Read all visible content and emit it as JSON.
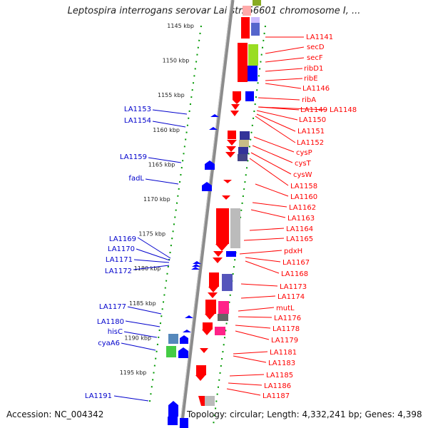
{
  "title": "Leptospira interrogans serovar Lai str. 56601 chromosome I, ...",
  "footer": {
    "accession": "Accession: NC_004342",
    "topology": "Topology: circular; Length: 4,332,241 bp; Genes: 4,398"
  },
  "colors": {
    "red": "#ff0000",
    "blue": "#0000ff",
    "navy": "#333399",
    "khaki": "#c8bd86",
    "lime": "#99dd22",
    "gray": "#bbbbbb",
    "pink": "#ff2288",
    "steel": "#5588bb",
    "green": "#44cc44",
    "tick": "#009900",
    "backbone": "#888888"
  },
  "ticks": [
    {
      "label": "1145 kbp",
      "pos": 1145
    },
    {
      "label": "1150 kbp",
      "pos": 1150
    },
    {
      "label": "1155 kbp",
      "pos": 1155
    },
    {
      "label": "1160 kbp",
      "pos": 1160
    },
    {
      "label": "1165 kbp",
      "pos": 1165
    },
    {
      "label": "1170 kbp",
      "pos": 1170
    },
    {
      "label": "1175 kbp",
      "pos": 1175
    },
    {
      "label": "1180 kbp",
      "pos": 1180
    },
    {
      "label": "1185 kbp",
      "pos": 1185
    },
    {
      "label": "1190 kbp",
      "pos": 1190
    },
    {
      "label": "1195 kbp",
      "pos": 1195
    }
  ],
  "right_labels": [
    "LA1141",
    "secD",
    "secF",
    "ribD1",
    "ribE",
    "LA1146",
    "ribA",
    "LA1149",
    "LA1148",
    "LA1150",
    "LA1151",
    "LA1152",
    "cysP",
    "cysT",
    "cysW",
    "LA1158",
    "LA1160",
    "LA1162",
    "LA1163",
    "LA1164",
    "LA1165",
    "pdxH",
    "LA1167",
    "LA1168",
    "LA1173",
    "LA1174",
    "mutL",
    "LA1176",
    "LA1178",
    "LA1179",
    "LA1181",
    "LA1183",
    "LA1185",
    "LA1186",
    "LA1187"
  ],
  "left_labels": [
    "LA1153",
    "LA1154",
    "LA1159",
    "fadL",
    "LA1169",
    "LA1170",
    "LA1171",
    "LA1172",
    "LA1177",
    "LA1180",
    "hisC",
    "cyaA6",
    "LA1191"
  ]
}
